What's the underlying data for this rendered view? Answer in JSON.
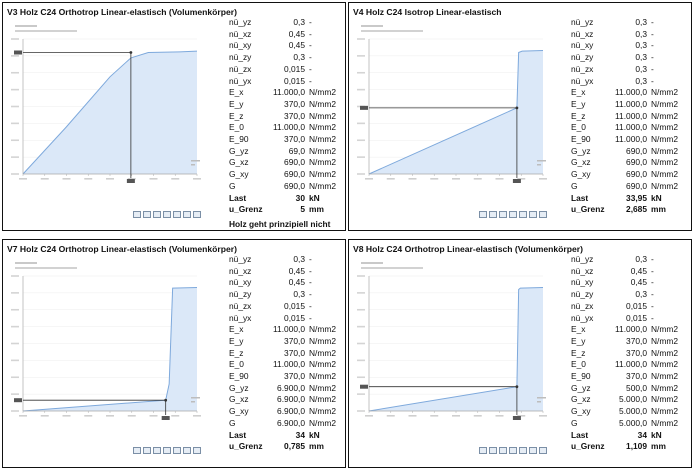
{
  "colors": {
    "fill": "#dbe8f8",
    "line": "#7ea9dc",
    "marker": "#333333"
  },
  "panels": [
    {
      "title": "V3 Holz C24 Orthotrop Linear-elastisch (Volumenkörper)",
      "rows": [
        {
          "name": "nü_yz",
          "value": "0,3",
          "unit": "-"
        },
        {
          "name": "nü_xz",
          "value": "0,45",
          "unit": "-"
        },
        {
          "name": "nü_xy",
          "value": "0,45",
          "unit": "-"
        },
        {
          "name": "nü_zy",
          "value": "0,3",
          "unit": "-"
        },
        {
          "name": "nü_zx",
          "value": "0,015",
          "unit": "-"
        },
        {
          "name": "nü_yx",
          "value": "0,015",
          "unit": "-"
        },
        {
          "name": "E_x",
          "value": "11.000,0",
          "unit": "N/mm2"
        },
        {
          "name": "E_y",
          "value": "370,0",
          "unit": "N/mm2"
        },
        {
          "name": "E_z",
          "value": "370,0",
          "unit": "N/mm2"
        },
        {
          "name": "E_0",
          "value": "11.000,0",
          "unit": "N/mm2"
        },
        {
          "name": "E_90",
          "value": "370,0",
          "unit": "N/mm2"
        },
        {
          "name": "G_yz",
          "value": "69,0",
          "unit": "N/mm2"
        },
        {
          "name": "G_xz",
          "value": "690,0",
          "unit": "N/mm2"
        },
        {
          "name": "G_xy",
          "value": "690,0",
          "unit": "N/mm2"
        },
        {
          "name": "G",
          "value": "690,0",
          "unit": "N/mm2"
        },
        {
          "name": "Last",
          "value": "30",
          "unit": "kN",
          "bold": true
        },
        {
          "name": "u_Grenz",
          "value": "5",
          "unit": "mm",
          "bold": true
        }
      ],
      "note": "Holz geht prinzipiell nicht"
    },
    {
      "title": "V4 Holz C24 Isotrop Linear-elastisch",
      "rows": [
        {
          "name": "nü_yz",
          "value": "0,3",
          "unit": "-"
        },
        {
          "name": "nü_xz",
          "value": "0,3",
          "unit": "-"
        },
        {
          "name": "nü_xy",
          "value": "0,3",
          "unit": "-"
        },
        {
          "name": "nü_zy",
          "value": "0,3",
          "unit": "-"
        },
        {
          "name": "nü_zx",
          "value": "0,3",
          "unit": "-"
        },
        {
          "name": "nü_yx",
          "value": "0,3",
          "unit": "-"
        },
        {
          "name": "E_x",
          "value": "11.000,0",
          "unit": "N/mm2"
        },
        {
          "name": "E_y",
          "value": "11.000,0",
          "unit": "N/mm2"
        },
        {
          "name": "E_z",
          "value": "11.000,0",
          "unit": "N/mm2"
        },
        {
          "name": "E_0",
          "value": "11.000,0",
          "unit": "N/mm2"
        },
        {
          "name": "E_90",
          "value": "11.000,0",
          "unit": "N/mm2"
        },
        {
          "name": "G_yz",
          "value": "690,0",
          "unit": "N/mm2"
        },
        {
          "name": "G_xz",
          "value": "690,0",
          "unit": "N/mm2"
        },
        {
          "name": "G_xy",
          "value": "690,0",
          "unit": "N/mm2"
        },
        {
          "name": "G",
          "value": "690,0",
          "unit": "N/mm2"
        },
        {
          "name": "Last",
          "value": "33,95",
          "unit": "kN",
          "bold": true
        },
        {
          "name": "u_Grenz",
          "value": "2,685",
          "unit": "mm",
          "bold": true
        }
      ],
      "note": ""
    },
    {
      "title": "V7 Holz C24 Orthotrop Linear-elastisch (Volumenkörper)",
      "rows": [
        {
          "name": "nü_yz",
          "value": "0,3",
          "unit": "-"
        },
        {
          "name": "nü_xz",
          "value": "0,45",
          "unit": "-"
        },
        {
          "name": "nü_xy",
          "value": "0,45",
          "unit": "-"
        },
        {
          "name": "nü_zy",
          "value": "0,3",
          "unit": "-"
        },
        {
          "name": "nü_zx",
          "value": "0,015",
          "unit": "-"
        },
        {
          "name": "nü_yx",
          "value": "0,015",
          "unit": "-"
        },
        {
          "name": "E_x",
          "value": "11.000,0",
          "unit": "N/mm2"
        },
        {
          "name": "E_y",
          "value": "370,0",
          "unit": "N/mm2"
        },
        {
          "name": "E_z",
          "value": "370,0",
          "unit": "N/mm2"
        },
        {
          "name": "E_0",
          "value": "11.000,0",
          "unit": "N/mm2"
        },
        {
          "name": "E_90",
          "value": "370,0",
          "unit": "N/mm2"
        },
        {
          "name": "G_yz",
          "value": "6.900,0",
          "unit": "N/mm2"
        },
        {
          "name": "G_xz",
          "value": "6.900,0",
          "unit": "N/mm2"
        },
        {
          "name": "G_xy",
          "value": "6.900,0",
          "unit": "N/mm2"
        },
        {
          "name": "G",
          "value": "6.900,0",
          "unit": "N/mm2"
        },
        {
          "name": "Last",
          "value": "34",
          "unit": "kN",
          "bold": true
        },
        {
          "name": "u_Grenz",
          "value": "0,785",
          "unit": "mm",
          "bold": true
        }
      ],
      "note": ""
    },
    {
      "title": "V8 Holz C24 Orthotrop Linear-elastisch (Volumenkörper)",
      "rows": [
        {
          "name": "nü_yz",
          "value": "0,3",
          "unit": "-"
        },
        {
          "name": "nü_xz",
          "value": "0,45",
          "unit": "-"
        },
        {
          "name": "nü_xy",
          "value": "0,45",
          "unit": "-"
        },
        {
          "name": "nü_zy",
          "value": "0,3",
          "unit": "-"
        },
        {
          "name": "nü_zx",
          "value": "0,015",
          "unit": "-"
        },
        {
          "name": "nü_yx",
          "value": "0,015",
          "unit": "-"
        },
        {
          "name": "E_x",
          "value": "11.000,0",
          "unit": "N/mm2"
        },
        {
          "name": "E_y",
          "value": "370,0",
          "unit": "N/mm2"
        },
        {
          "name": "E_z",
          "value": "370,0",
          "unit": "N/mm2"
        },
        {
          "name": "E_0",
          "value": "11.000,0",
          "unit": "N/mm2"
        },
        {
          "name": "E_90",
          "value": "370,0",
          "unit": "N/mm2"
        },
        {
          "name": "G_yz",
          "value": "500,0",
          "unit": "N/mm2"
        },
        {
          "name": "G_xz",
          "value": "5.000,0",
          "unit": "N/mm2"
        },
        {
          "name": "G_xy",
          "value": "5.000,0",
          "unit": "N/mm2"
        },
        {
          "name": "G",
          "value": "5.000,0",
          "unit": "N/mm2"
        },
        {
          "name": "Last",
          "value": "34",
          "unit": "kN",
          "bold": true
        },
        {
          "name": "u_Grenz",
          "value": "1,109",
          "unit": "mm",
          "bold": true
        }
      ],
      "note": ""
    }
  ],
  "chart_data": [
    {
      "type": "area",
      "title": "",
      "xlim": [
        0,
        1
      ],
      "ylim": [
        0,
        1
      ],
      "x": [
        0,
        0.25,
        0.5,
        0.62,
        0.72,
        0.9,
        1.0
      ],
      "y": [
        0,
        0.35,
        0.72,
        0.86,
        0.9,
        0.905,
        0.91
      ],
      "marker": [
        0.62,
        0.9
      ]
    },
    {
      "type": "area",
      "title": "",
      "xlim": [
        0,
        1
      ],
      "ylim": [
        0,
        1
      ],
      "x": [
        0,
        0.85,
        0.86,
        0.88,
        1.0
      ],
      "y": [
        0,
        0.49,
        0.9,
        0.91,
        0.915
      ],
      "marker": [
        0.85,
        0.49
      ]
    },
    {
      "type": "area",
      "title": "",
      "xlim": [
        0,
        1
      ],
      "ylim": [
        0,
        1
      ],
      "x": [
        0,
        0.82,
        0.84,
        0.86,
        1.0
      ],
      "y": [
        0,
        0.08,
        0.2,
        0.91,
        0.915
      ],
      "marker": [
        0.82,
        0.08
      ]
    },
    {
      "type": "area",
      "title": "",
      "xlim": [
        0,
        1
      ],
      "ylim": [
        0,
        1
      ],
      "x": [
        0,
        0.85,
        0.86,
        0.87,
        1.0
      ],
      "y": [
        0,
        0.18,
        0.9,
        0.91,
        0.915
      ],
      "marker": [
        0.85,
        0.18
      ]
    }
  ]
}
